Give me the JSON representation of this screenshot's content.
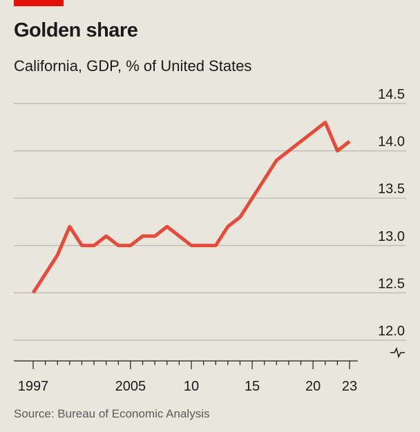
{
  "header": {
    "accent_color": "#e3120b"
  },
  "footer": {
    "source": "Source: Bureau of Economic Analysis"
  },
  "chart_data": {
    "type": "line",
    "title": "Golden share",
    "subtitle": "California, GDP, % of United States",
    "xlabel": "",
    "ylabel": "",
    "xlim": [
      1997,
      2023
    ],
    "ylim": [
      12.0,
      14.5
    ],
    "y_axis_position": "right",
    "y_axis_break": true,
    "grid": "horizontal",
    "legend": "none",
    "y_ticks": [
      {
        "value": 12.0,
        "label": "12.0"
      },
      {
        "value": 12.5,
        "label": "12.5"
      },
      {
        "value": 13.0,
        "label": "13.0"
      },
      {
        "value": 13.5,
        "label": "13.5"
      },
      {
        "value": 14.0,
        "label": "14.0"
      },
      {
        "value": 14.5,
        "label": "14.5"
      }
    ],
    "x_ticks": [
      {
        "value": 1997,
        "label": "1997"
      },
      {
        "value": 2005,
        "label": "2005"
      },
      {
        "value": 2010,
        "label": "10"
      },
      {
        "value": 2015,
        "label": "15"
      },
      {
        "value": 2020,
        "label": "20"
      },
      {
        "value": 2023,
        "label": "23"
      }
    ],
    "x_minor_ticks": [
      1998,
      1999,
      2000,
      2001,
      2002,
      2003,
      2004,
      2006,
      2007,
      2008,
      2009,
      2011,
      2012,
      2013,
      2014,
      2016,
      2017,
      2018,
      2019,
      2021,
      2022
    ],
    "series": [
      {
        "color": "#e64a3b",
        "x": [
          1997,
          1998,
          1999,
          2000,
          2001,
          2002,
          2003,
          2004,
          2005,
          2006,
          2007,
          2008,
          2009,
          2010,
          2011,
          2012,
          2013,
          2014,
          2015,
          2016,
          2017,
          2018,
          2019,
          2020,
          2021,
          2022,
          2023
        ],
        "values": [
          12.5,
          12.7,
          12.9,
          13.2,
          13.0,
          13.0,
          13.1,
          13.0,
          13.0,
          13.1,
          13.1,
          13.2,
          13.1,
          13.0,
          13.0,
          13.0,
          13.2,
          13.3,
          13.5,
          13.7,
          13.9,
          14.0,
          14.1,
          14.2,
          14.3,
          14.0,
          14.1
        ]
      }
    ]
  }
}
